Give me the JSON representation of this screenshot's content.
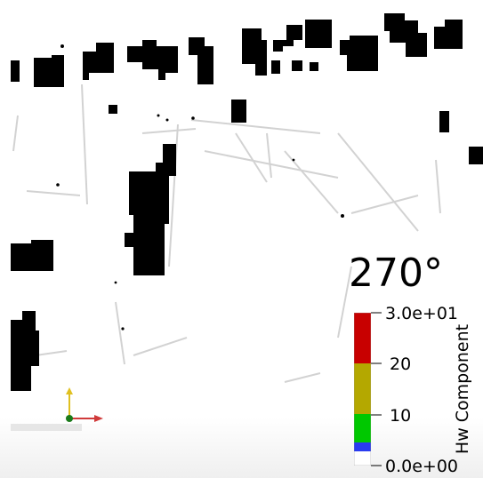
{
  "view": {
    "angle_label": "270°"
  },
  "colorbar": {
    "title": "Hw Component",
    "max_label": "3.0e+01",
    "min_label": "0.0e+00",
    "tick_labels": [
      "20",
      "10"
    ],
    "range": [
      0,
      30
    ],
    "color_bands": [
      {
        "from": 0,
        "to": 3,
        "color": "#ffffff"
      },
      {
        "from": 3,
        "to": 6,
        "color": "#2a3cf0"
      },
      {
        "from": 6,
        "to": 10,
        "color": "#00c800"
      },
      {
        "from": 10,
        "to": 20,
        "color": "#b4a800"
      },
      {
        "from": 20,
        "to": 30,
        "color": "#c80000"
      }
    ]
  },
  "axes_triad": {
    "x_color": "#d03a3a",
    "y_color": "#e0c020",
    "z_color": "#1a7a1a"
  }
}
